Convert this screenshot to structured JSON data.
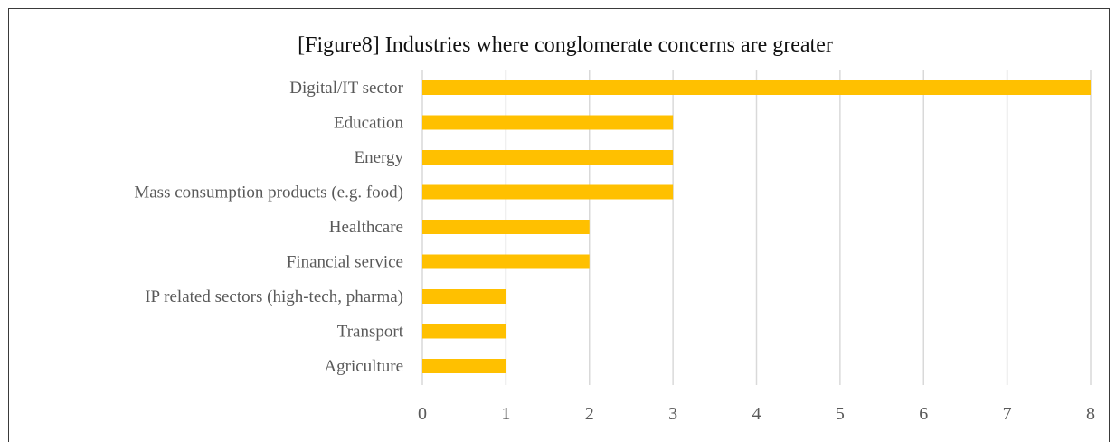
{
  "chart_data": {
    "type": "bar",
    "orientation": "horizontal",
    "title": "[Figure8]  Industries where conglomerate concerns are greater",
    "xlabel": "",
    "ylabel": "",
    "categories": [
      "Digital/IT sector",
      "Education",
      "Energy",
      "Mass consumption products (e.g. food)",
      "Healthcare",
      "Financial service",
      "IP related sectors (high-tech, pharma)",
      "Transport",
      "Agriculture"
    ],
    "values": [
      8,
      3,
      3,
      3,
      2,
      2,
      1,
      1,
      1
    ],
    "xlim": [
      0,
      8
    ],
    "x_ticks": [
      "0",
      "1",
      "2",
      "3",
      "4",
      "5",
      "6",
      "7",
      "8"
    ],
    "grid": "vertical",
    "legend": "none",
    "colors": {
      "bar": "#FFC000",
      "grid": "#D9D9D9",
      "label": "#595959",
      "title": "#111111"
    }
  }
}
